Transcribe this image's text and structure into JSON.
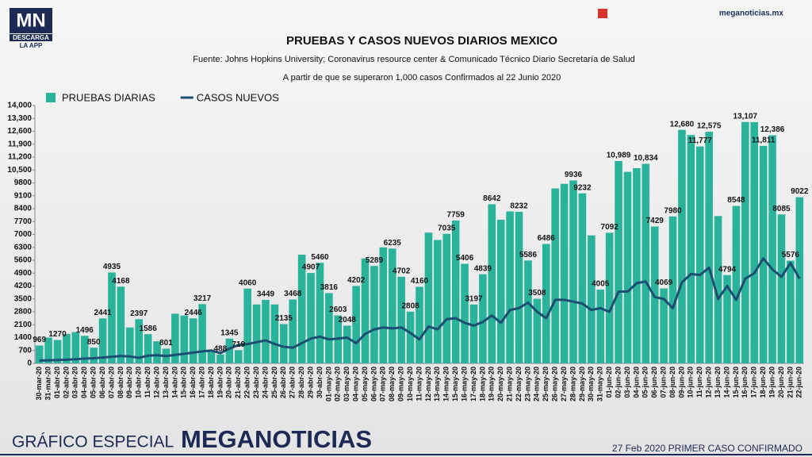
{
  "logo": {
    "mark": "MN",
    "line1": "DESCARGA",
    "line2": "LA APP"
  },
  "site": "meganoticias.mx",
  "footer": {
    "left": "GRÁFICO ESPECIAL",
    "brand": "MEGANOTICIAS",
    "right": "27 Feb 2020 PRIMER CASO CONFIRMADO"
  },
  "chart_data": {
    "type": "bar",
    "title": "PRUEBAS Y CASOS NUEVOS DIARIOS MEXICO",
    "subtitle": "Fuente: Johns Hopkins University; Coronavirus resource center & Comunicado Técnico Diario Secretaría de Salud",
    "note": "A partir de que se superaron 1,000 casos Confirmados al 22 Junio 2020",
    "categories": [
      "30-mar-20",
      "31-mar-20",
      "01-abr-20",
      "02-abr-20",
      "03-abr-20",
      "04-abr-20",
      "05-abr-20",
      "06-abr-20",
      "07-abr-20",
      "08-abr-20",
      "09-abr-20",
      "10-abr-20",
      "11-abr-20",
      "12-abr-20",
      "13-abr-20",
      "14-abr-20",
      "15-abr-20",
      "16-abr-20",
      "17-abr-20",
      "18-abr-20",
      "19-abr-20",
      "20-abr-20",
      "21-abr-20",
      "22-abr-20",
      "23-abr-20",
      "24-abr-20",
      "25-abr-20",
      "26-abr-20",
      "27-abr-20",
      "28-abr-20",
      "29-abr-20",
      "30-abr-20",
      "01-may-20",
      "02-may-20",
      "03-may-20",
      "04-may-20",
      "05-may-20",
      "06-may-20",
      "07-may-20",
      "08-may-20",
      "09-may-20",
      "10-may-20",
      "11-may-20",
      "12-may-20",
      "13-may-20",
      "14-may-20",
      "15-may-20",
      "16-may-20",
      "17-may-20",
      "18-may-20",
      "19-may-20",
      "20-may-20",
      "21-may-20",
      "22-may-20",
      "23-may-20",
      "24-may-20",
      "25-may-20",
      "26-may-20",
      "27-may-20",
      "28-may-20",
      "29-may-20",
      "30-may-20",
      "31-may-20",
      "01-jun-20",
      "02-jun-20",
      "03-jun-20",
      "04-jun-20",
      "05-jun-20",
      "06-jun-20",
      "07-jun-20",
      "08-jun-20",
      "09-jun-20",
      "10-jun-20",
      "11-jun-20",
      "12-jun-20",
      "13-jun-20",
      "14-jun-20",
      "15-jun-20",
      "16-jun-20",
      "17-jun-20",
      "18-jun-20",
      "19-jun-20",
      "20-jun-20",
      "21-jun-20",
      "22-jun-20"
    ],
    "series": [
      {
        "name": "PRUEBAS DIARIAS",
        "type": "bar",
        "color": "#2ab39b",
        "values": [
          969,
          1400,
          1270,
          1600,
          1700,
          1496,
          850,
          2441,
          4935,
          4168,
          1950,
          2397,
          1586,
          1200,
          801,
          2700,
          2600,
          2446,
          3217,
          650,
          488,
          1345,
          719,
          4060,
          3200,
          3449,
          3200,
          2135,
          3468,
          5900,
          4907,
          5460,
          3816,
          2603,
          2048,
          4202,
          5700,
          5289,
          6300,
          6235,
          4702,
          2808,
          4160,
          7100,
          6700,
          7035,
          7759,
          5406,
          3197,
          4839,
          8642,
          7800,
          8250,
          8232,
          5586,
          3508,
          6486,
          9500,
          9750,
          9936,
          9232,
          6950,
          4005,
          7092,
          10989,
          10400,
          10600,
          10834,
          7429,
          4069,
          7980,
          12680,
          12400,
          11777,
          12575,
          8000,
          4794,
          8548,
          13107,
          13100,
          11811,
          12386,
          8085,
          5576,
          9022
        ],
        "value_labels": [
          "969",
          null,
          "1270",
          null,
          null,
          "1496",
          "850",
          "2441",
          "4935",
          "4168",
          null,
          "2397",
          "1586",
          null,
          "801",
          null,
          null,
          "2446",
          "3217",
          null,
          "488",
          "1345",
          "719",
          "4060",
          null,
          "3449",
          null,
          "2135",
          "3468",
          null,
          "4907",
          "5460",
          "3816",
          "2603",
          "2048",
          "4202",
          null,
          "5289",
          null,
          "6235",
          "4702",
          "2808",
          "4160",
          null,
          null,
          "7035",
          "7759",
          "5406",
          "3197",
          "4839",
          "8642",
          null,
          null,
          "8232",
          "5586",
          "3508",
          "6486",
          null,
          null,
          "9936",
          "9232",
          null,
          "4005",
          "7092",
          "10,989",
          null,
          null,
          "10,834",
          "7429",
          "4069",
          "7980",
          "12,680",
          null,
          "11,777",
          "12,575",
          null,
          "4794",
          "8548",
          "13,107",
          null,
          "11,811",
          "12,386",
          "8085",
          "5576",
          "9022"
        ]
      },
      {
        "name": "CASOS NUEVOS",
        "type": "line",
        "color": "#1b4f72",
        "values": [
          150,
          170,
          180,
          200,
          230,
          260,
          280,
          320,
          360,
          400,
          380,
          300,
          420,
          440,
          400,
          460,
          520,
          580,
          650,
          700,
          560,
          800,
          1000,
          1050,
          1150,
          1250,
          1050,
          900,
          850,
          1100,
          1350,
          1450,
          1300,
          1350,
          1400,
          1100,
          1600,
          1850,
          1950,
          1900,
          1950,
          1650,
          1300,
          2000,
          1850,
          2400,
          2450,
          2200,
          2050,
          2250,
          2600,
          2200,
          2900,
          3000,
          3300,
          2800,
          2450,
          3450,
          3450,
          3350,
          3250,
          2900,
          3000,
          2800,
          3900,
          3900,
          4350,
          4450,
          3600,
          3500,
          3000,
          4400,
          4850,
          4800,
          5200,
          3500,
          4200,
          3450,
          4600,
          4900,
          5700,
          5100,
          4700,
          5450,
          4600
        ]
      }
    ],
    "ylim": [
      0,
      14000
    ],
    "yticks": [
      0,
      700,
      1400,
      2100,
      2800,
      3500,
      4200,
      4900,
      5600,
      6300,
      7000,
      7700,
      8400,
      9100,
      9800,
      {
        "value": 10500,
        "label": "10,500"
      },
      {
        "value": 11200,
        "label": "11,200"
      },
      {
        "value": 11900,
        "label": "11,900"
      },
      {
        "value": 12600,
        "label": "12,600"
      },
      {
        "value": 13300,
        "label": "13,300"
      },
      {
        "value": 14000,
        "label": "14,000"
      }
    ],
    "grid": false,
    "legend": "top-left"
  }
}
